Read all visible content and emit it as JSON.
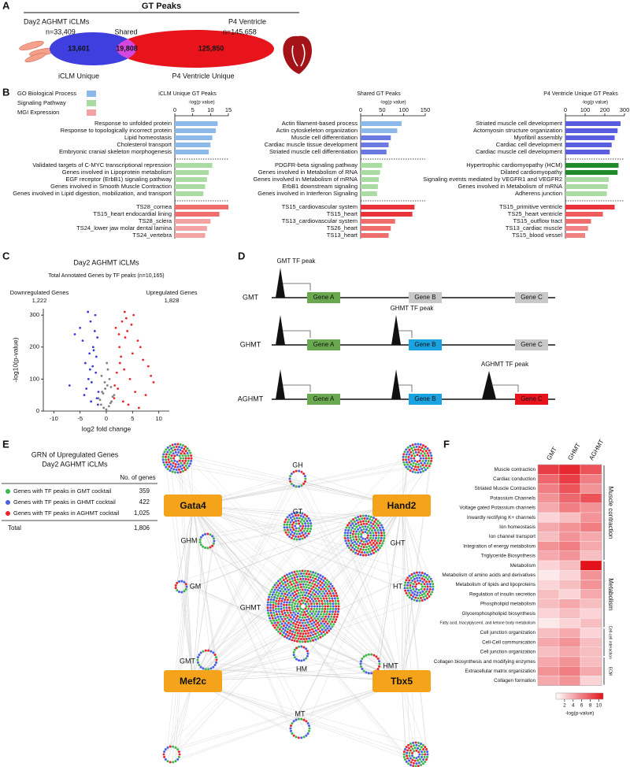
{
  "panel_a": {
    "label": "A",
    "title": "GT Peaks",
    "left_name": "Day2 AGHMT iCLMs",
    "left_n": "n=33,409",
    "right_name": "P4 Ventricle",
    "right_n": "n=145,658",
    "shared": "Shared",
    "left_unique": "13,601",
    "overlap": "19,808",
    "right_unique": "125,850",
    "left_caption": "iCLM Unique",
    "right_caption": "P4 Ventricle Unique"
  },
  "panel_b": {
    "label": "B",
    "legend": [
      {
        "name": "GO Biological Process",
        "color": "#8db9ea"
      },
      {
        "name": "Signaling Pathway",
        "color": "#a9dba3"
      },
      {
        "name": "MGI Expression",
        "color": "#f4a3a3"
      }
    ],
    "charts": [
      {
        "title": "iCLM Unique GT Peaks",
        "axis_label": "-log(p value)",
        "xlim": [
          0,
          15
        ],
        "xticks": [
          0,
          5,
          10,
          15
        ],
        "groups": [
          {
            "categories": [
              "Response to unfolded protein",
              "Response to topologically incorrect protein",
              "Lipid homeostasis",
              "Cholesterol transport",
              "Embryonic cranial skeleton morphogenesis"
            ],
            "values": [
              12,
              11.5,
              10.5,
              10,
              9.5
            ],
            "colors": [
              "#8db9ea",
              "#8db9ea",
              "#8db9ea",
              "#8db9ea",
              "#8db9ea"
            ]
          },
          {
            "categories": [
              "Validated targets of C-MYC transcriptional repression",
              "Genes involved in Lipoprotein metabolism",
              "EGF receptor (ErbB1) signaling pathway",
              "Genes involved in Smooth Muscle Contraction",
              "Genes involved in Lipid digestion, mobilization, and transport"
            ],
            "values": [
              10.5,
              9.5,
              9,
              8.5,
              8
            ],
            "colors": [
              "#a9dba3",
              "#a9dba3",
              "#a9dba3",
              "#a9dba3",
              "#a9dba3"
            ]
          },
          {
            "categories": [
              "TS28_cornea",
              "TS15_heart endocardial lining",
              "TS28_sclera",
              "TS24_lower jaw molar dental lamina",
              "TS24_vertebra"
            ],
            "values": [
              15,
              12.5,
              10,
              9,
              8.5
            ],
            "colors": [
              "#ef6d6d",
              "#ef6d6d",
              "#f4a3a3",
              "#f4a3a3",
              "#f4a3a3"
            ]
          }
        ]
      },
      {
        "title": "Shared GT Peaks",
        "axis_label": "-log(p value)",
        "xlim": [
          0,
          150
        ],
        "xticks": [
          0,
          50,
          100,
          150
        ],
        "groups": [
          {
            "categories": [
              "Actin filament-based process",
              "Actin cytoskeleton organization",
              "Muscle cell differentiation",
              "Cardiac muscle tissue development",
              "Striated muscle cell differentiation"
            ],
            "values": [
              95,
              85,
              70,
              65,
              60
            ],
            "colors": [
              "#8db9ea",
              "#8db9ea",
              "#6a78e0",
              "#6a78e0",
              "#6a78e0"
            ]
          },
          {
            "categories": [
              "PDGFR-beta signaling pathway",
              "Genes involved in Metabolism of RNA",
              "Genes involved in Metabolism of mRNA",
              "ErbB1 downstream signaling",
              "Genes involved in Interferon Signaling"
            ],
            "values": [
              50,
              45,
              42,
              40,
              38
            ],
            "colors": [
              "#a9dba3",
              "#a9dba3",
              "#a9dba3",
              "#a9dba3",
              "#a9dba3"
            ]
          },
          {
            "categories": [
              "TS15_cardiovascular system",
              "TS15_heart",
              "TS13_cardiovascular system",
              "TS26_heart",
              "TS13_heart"
            ],
            "values": [
              125,
              120,
              80,
              70,
              65
            ],
            "colors": [
              "#e8333a",
              "#e8333a",
              "#ef6d6d",
              "#ef6d6d",
              "#ef6d6d"
            ]
          }
        ]
      },
      {
        "title": "P4 Ventricle Unique GT Peaks",
        "axis_label": "-log(p value)",
        "xlim": [
          0,
          300
        ],
        "xticks": [
          0,
          100,
          200,
          300
        ],
        "groups": [
          {
            "categories": [
              "Striated muscle cell development",
              "Actomyosin structure organization",
              "Myofibril assembly",
              "Cardiac cell development",
              "Cardiac muscle cell development"
            ],
            "values": [
              280,
              265,
              250,
              235,
              225
            ],
            "colors": [
              "#5a5de0",
              "#5a5de0",
              "#5a5de0",
              "#5a5de0",
              "#5a5de0"
            ]
          },
          {
            "categories": [
              "Hypertrophic cardiomyopathy (HCM)",
              "Dilated cardiomyopathy",
              "Signaling events mediated by VEGFR1 and VEGFR2",
              "Genes involved in Metabolism of mRNA",
              "Adherens junction"
            ],
            "values": [
              270,
              265,
              220,
              215,
              210
            ],
            "colors": [
              "#1e8a2a",
              "#1e8a2a",
              "#a9dba3",
              "#a9dba3",
              "#a9dba3"
            ]
          },
          {
            "categories": [
              "TS15_primitive ventricle",
              "TS25_heart ventricle",
              "TS15_outflow tract",
              "TS13_cardiac muscle",
              "TS15_blood vessel"
            ],
            "values": [
              250,
              190,
              130,
              115,
              100
            ],
            "colors": [
              "#e8333a",
              "#ef5a5a",
              "#ef6d6d",
              "#f18080",
              "#f18080"
            ]
          }
        ]
      }
    ]
  },
  "panel_c": {
    "label": "C",
    "title": "Day2 AGHMT iCLMs",
    "subtitle": "Total Annotated Genes by TF peaks (n=10,165)",
    "down_label": "Downregulated Genes",
    "down_count": "1,222",
    "up_label": "Upregulated Genes",
    "up_count": "1,828",
    "chart_data": {
      "type": "scatter",
      "x_label": "log2 fold change",
      "y_label": "-log10(p-value)",
      "xlim": [
        -12,
        12
      ],
      "xticks": [
        -10,
        -5,
        0,
        5,
        10
      ],
      "ylim": [
        0,
        320
      ],
      "yticks": [
        0,
        100,
        200,
        300
      ],
      "series": [
        {
          "color": "#808080",
          "x": [
            -1,
            -0.5,
            0,
            0.5,
            1,
            -1.5,
            1.5,
            -0.8,
            0.8,
            0.2,
            -0.2,
            1.2,
            -1.2,
            0.6,
            -0.6,
            0.3,
            -0.3,
            0.9,
            -0.9,
            0.1
          ],
          "values": [
            20,
            10,
            5,
            15,
            30,
            40,
            50,
            60,
            25,
            80,
            70,
            45,
            35,
            100,
            55,
            130,
            90,
            75,
            110,
            150
          ]
        },
        {
          "color": "#3a3ae0",
          "x": [
            -1.5,
            -2,
            -2.5,
            -3,
            -3.5,
            -4,
            -1.8,
            -2.2,
            -2.8,
            -3.2,
            -4.5,
            -5,
            -2.1,
            -3.8,
            -1.6,
            -2.6,
            -3.4,
            -6,
            -2.9,
            -1.9,
            -4.2,
            -2.4,
            -7,
            -1.7,
            -3.1
          ],
          "values": [
            60,
            120,
            200,
            280,
            310,
            150,
            40,
            250,
            90,
            180,
            220,
            260,
            300,
            70,
            20,
            140,
            100,
            240,
            30,
            170,
            50,
            190,
            80,
            230,
            130
          ]
        },
        {
          "color": "#e8262d",
          "x": [
            1.5,
            2,
            2.5,
            3,
            3.5,
            4,
            5,
            6,
            7,
            8,
            9,
            2.2,
            3.2,
            4.5,
            5.5,
            6.5,
            1.8,
            2.8,
            3.8,
            7.5,
            4.2,
            2.6,
            3.6,
            5.2,
            8.5,
            1.6,
            2.4,
            3.4,
            4.8,
            6.2
          ],
          "values": [
            40,
            120,
            200,
            280,
            310,
            250,
            180,
            220,
            160,
            140,
            90,
            70,
            30,
            100,
            60,
            200,
            260,
            170,
            290,
            50,
            20,
            150,
            230,
            300,
            110,
            80,
            240,
            130,
            270,
            10
          ]
        }
      ]
    }
  },
  "panel_d": {
    "label": "D",
    "rows": [
      {
        "label": "GMT",
        "peak_label": "GMT TF peak",
        "genes": [
          {
            "label": "Gene A",
            "color": "#6aa84f"
          },
          {
            "label": "Gene B",
            "color": "#c8c8c8"
          },
          {
            "label": "Gene C",
            "color": "#c8c8c8"
          }
        ]
      },
      {
        "label": "GHMT",
        "peak_label": "GHMT TF peak",
        "genes": [
          {
            "label": "Gene A",
            "color": "#6aa84f"
          },
          {
            "label": "Gene B",
            "color": "#1aa3e0"
          },
          {
            "label": "Gene C",
            "color": "#c8c8c8"
          }
        ]
      },
      {
        "label": "AGHMT",
        "peak_label": "AGHMT TF peak",
        "genes": [
          {
            "label": "Gene A",
            "color": "#6aa84f"
          },
          {
            "label": "Gene B",
            "color": "#1aa3e0"
          },
          {
            "label": "Gene C",
            "color": "#e8141c"
          }
        ]
      }
    ]
  },
  "panel_e": {
    "label": "E",
    "title": "GRN of Upregulated Genes",
    "subtitle": "Day2 AGHMT iCLMs",
    "count_header": "No. of genes",
    "rows": [
      {
        "label": "Genes with TF peaks in GMT cocktail",
        "count": "359",
        "color": "#3db54a"
      },
      {
        "label": "Genes with TF peaks in GHMT cocktail",
        "count": "422",
        "color": "#4a5ee8"
      },
      {
        "label": "Genes with TF peaks in AGHMT cocktail",
        "count": "1,025",
        "color": "#e8262d"
      }
    ],
    "total": {
      "label": "Total",
      "count": "1,806"
    },
    "tf_nodes": [
      "Gata4",
      "Hand2",
      "Mef2c",
      "Tbx5"
    ],
    "tf_color": "#f5a31a",
    "clusters": [
      "GH",
      "GT",
      "GHM",
      "GHT",
      "GM",
      "GHMT",
      "HT",
      "GMT",
      "HM",
      "HMT",
      "MT"
    ]
  },
  "panel_f": {
    "label": "F",
    "columns": [
      "GMT",
      "GHMT",
      "AGHMT"
    ],
    "colorbar_label": "-log(p-value)",
    "clim": [
      0,
      11
    ],
    "cticks": [
      2,
      4,
      6,
      8,
      10
    ],
    "colors": [
      "#ffffff",
      "#e3121b"
    ],
    "groups": [
      {
        "label": "Muscle contraction",
        "rows": [
          {
            "label": "Muscle contraction",
            "values": [
              9,
              10,
              8
            ]
          },
          {
            "label": "Cardiac conduction",
            "values": [
              7,
              9,
              6
            ]
          },
          {
            "label": "Striated Muscle Contraction",
            "values": [
              6,
              8,
              5
            ]
          },
          {
            "label": "Potassium Channels",
            "values": [
              5,
              7,
              8
            ]
          },
          {
            "label": "Voltage gated Potassium channels",
            "values": [
              4,
              6,
              5
            ]
          },
          {
            "label": "Inwardly rectifying K+ channels",
            "values": [
              2,
              3,
              5
            ]
          },
          {
            "label": "Ion homeostasis",
            "values": [
              4,
              5,
              6
            ]
          },
          {
            "label": "Ion channel transport",
            "values": [
              3,
              5,
              4
            ]
          },
          {
            "label": "Integration of energy metabolism",
            "values": [
              5,
              6,
              4
            ]
          },
          {
            "label": "Triglyceride Biosynthesis",
            "values": [
              4,
              5,
              3
            ]
          }
        ]
      },
      {
        "label": "Metabolism",
        "rows": [
          {
            "label": "Metabolism",
            "values": [
              2,
              3,
              11
            ]
          },
          {
            "label": "Metabolism of amino acids and derivatives",
            "values": [
              1,
              2,
              5
            ]
          },
          {
            "label": "Metabolism of lipids and lipoproteins",
            "values": [
              2,
              3,
              5
            ]
          },
          {
            "label": "Regulation of insulin secretion",
            "values": [
              3,
              2,
              4
            ]
          },
          {
            "label": "Phospholipid metabolism",
            "values": [
              3,
              4,
              3
            ]
          },
          {
            "label": "Glycerophospholipid biosynthesis",
            "values": [
              2,
              3,
              2
            ]
          },
          {
            "label": "Fatty acid, triacylglycerol, and ketone body metabolism",
            "values": [
              1,
              2,
              3
            ]
          }
        ]
      },
      {
        "label": "Cell-cell interaction",
        "rows": [
          {
            "label": "Cell junction organization",
            "values": [
              3,
              4,
              2
            ]
          },
          {
            "label": "Cell-Cell communication",
            "values": [
              4,
              5,
              3
            ]
          },
          {
            "label": "Cell junction organization",
            "values": [
              3,
              4,
              3
            ]
          }
        ]
      },
      {
        "label": "ECM",
        "rows": [
          {
            "label": "Collagen biosynthesis and modifying enzymes",
            "values": [
              4,
              5,
              3
            ]
          },
          {
            "label": "Extracellular matrix organization",
            "values": [
              5,
              6,
              4
            ]
          },
          {
            "label": "Collagen formation",
            "values": [
              4,
              5,
              2
            ]
          }
        ]
      }
    ]
  }
}
